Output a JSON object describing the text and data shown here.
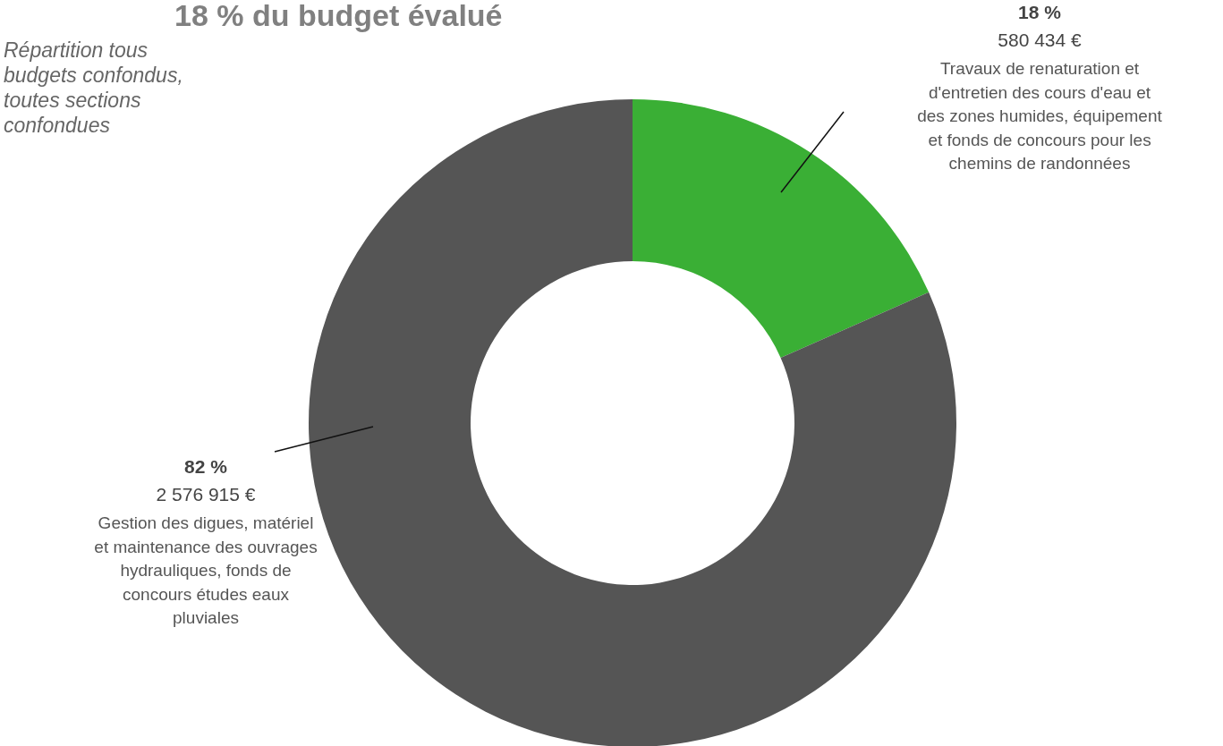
{
  "chart_data": {
    "type": "donut",
    "title": "18 % du budget évalué",
    "subtitle": "Répartition tous budgets confondus, toutes sections confondues",
    "categories": [
      "Travaux de renaturation et d'entretien des cours d'eau et des zones humides, équipement et fonds de concours pour les chemins de randonnées",
      "Gestion des digues, matériel et maintenance des ouvrages hydrauliques, fonds de concours études eaux pluviales"
    ],
    "values": [
      580434,
      2576915
    ],
    "value_labels": [
      "580 434 €",
      "2 576 915 €"
    ],
    "annotations": [
      "18 %",
      "82 %"
    ],
    "colors": [
      "#3aaf35",
      "#555555"
    ]
  }
}
